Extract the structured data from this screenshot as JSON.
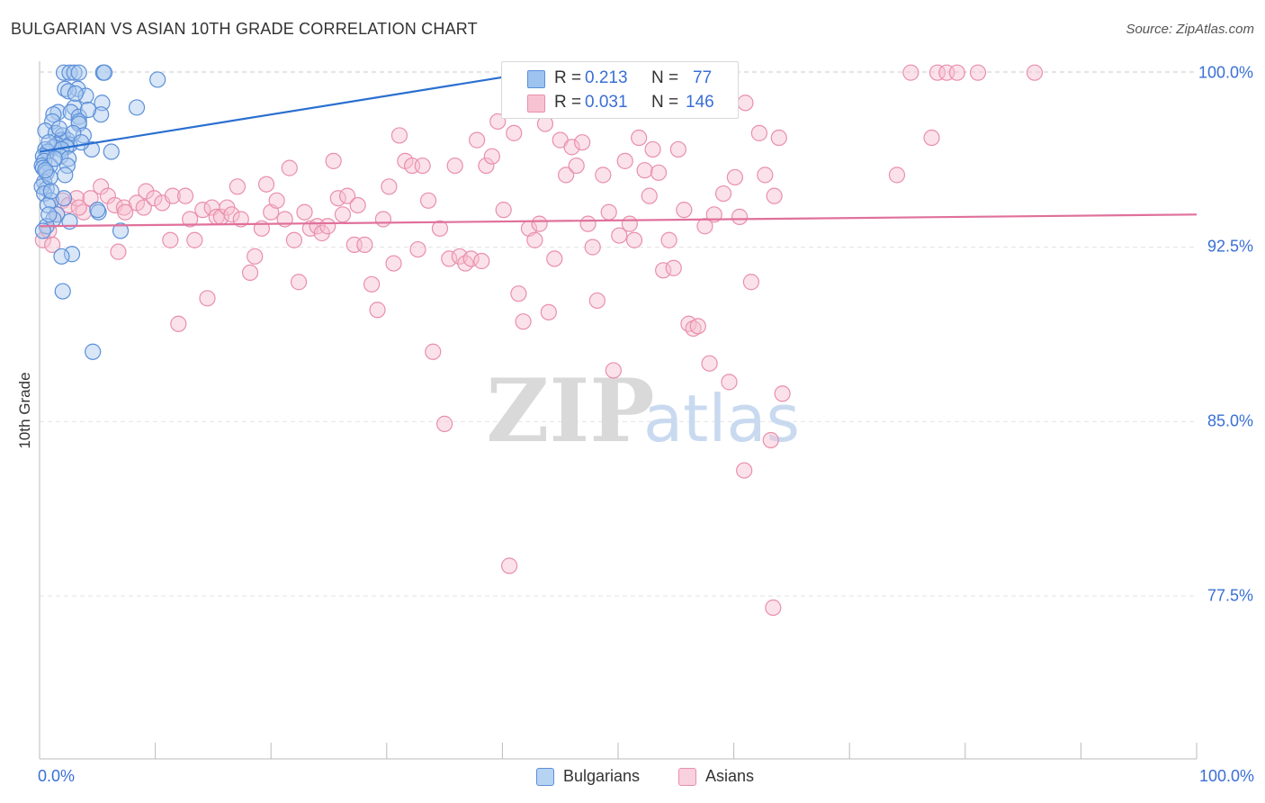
{
  "header": {
    "title": "BULGARIAN VS ASIAN 10TH GRADE CORRELATION CHART",
    "source": "Source: ZipAtlas.com"
  },
  "watermark": {
    "zip": "ZIP",
    "atlas": "atlas"
  },
  "legend": {
    "rows": [
      {
        "r_label": "R =",
        "r_value": "0.213",
        "n_label": "N =",
        "n_value": "77",
        "color": "#9dc3ef",
        "border": "#5b8fd9"
      },
      {
        "r_label": "R =",
        "r_value": "0.031",
        "n_label": "N =",
        "n_value": "146",
        "color": "#f7c3d3",
        "border": "#e98fac"
      }
    ]
  },
  "bottom_legend": [
    {
      "label": "Bulgarians",
      "color": "#b7d3f2",
      "border": "#5b8fd9"
    },
    {
      "label": "Asians",
      "color": "#f9d0dd",
      "border": "#e98fac"
    }
  ],
  "chart_data": {
    "type": "scatter",
    "title": "BULGARIAN VS ASIAN 10TH GRADE CORRELATION CHART",
    "xlabel": "",
    "ylabel": "10th Grade",
    "xlim": [
      0,
      100
    ],
    "ylim": [
      70.5,
      100.8
    ],
    "x_tick_labels": [
      {
        "value": 0,
        "label": "0.0%"
      },
      {
        "value": 100,
        "label": "100.0%"
      }
    ],
    "y_ticks": [
      {
        "value": 100.0,
        "label": "100.0%"
      },
      {
        "value": 92.5,
        "label": "92.5%"
      },
      {
        "value": 85.0,
        "label": "85.0%"
      },
      {
        "value": 77.5,
        "label": "77.5%"
      }
    ],
    "grid": true,
    "legend_position": "top-center",
    "series": [
      {
        "name": "Bulgarians",
        "color": "#5b8fd9",
        "fill": "#a9c8ee",
        "trend": {
          "x": [
            0,
            45
          ],
          "y": [
            96.6,
            100.2
          ],
          "color": "#2a6fd0"
        },
        "points": [
          [
            2.1,
            100.0
          ],
          [
            2.6,
            100.0
          ],
          [
            3.0,
            100.0
          ],
          [
            3.4,
            100.0
          ],
          [
            5.5,
            100.0
          ],
          [
            5.6,
            100.0
          ],
          [
            10.2,
            99.7
          ],
          [
            2.2,
            99.3
          ],
          [
            3.3,
            99.3
          ],
          [
            2.5,
            99.2
          ],
          [
            4.0,
            99.0
          ],
          [
            5.4,
            98.7
          ],
          [
            3.0,
            98.5
          ],
          [
            8.4,
            98.5
          ],
          [
            1.6,
            98.3
          ],
          [
            2.7,
            98.3
          ],
          [
            1.2,
            98.2
          ],
          [
            5.3,
            98.2
          ],
          [
            3.4,
            98.1
          ],
          [
            1.1,
            97.9
          ],
          [
            3.4,
            97.9
          ],
          [
            3.4,
            97.8
          ],
          [
            0.5,
            97.5
          ],
          [
            1.4,
            97.4
          ],
          [
            2.0,
            97.3
          ],
          [
            3.8,
            97.3
          ],
          [
            1.9,
            97.1
          ],
          [
            2.4,
            97.1
          ],
          [
            1.5,
            96.9
          ],
          [
            2.6,
            96.9
          ],
          [
            2.3,
            96.8
          ],
          [
            1.2,
            96.8
          ],
          [
            0.5,
            96.7
          ],
          [
            1.9,
            96.7
          ],
          [
            4.5,
            96.7
          ],
          [
            0.7,
            96.6
          ],
          [
            6.2,
            96.6
          ],
          [
            0.3,
            96.4
          ],
          [
            1.8,
            96.4
          ],
          [
            2.5,
            96.3
          ],
          [
            0.4,
            96.2
          ],
          [
            0.2,
            96.0
          ],
          [
            0.9,
            96.0
          ],
          [
            2.4,
            96.0
          ],
          [
            0.3,
            95.9
          ],
          [
            0.6,
            95.7
          ],
          [
            0.4,
            95.3
          ],
          [
            0.6,
            95.0
          ],
          [
            0.2,
            95.1
          ],
          [
            0.4,
            94.8
          ],
          [
            1.0,
            94.5
          ],
          [
            2.1,
            94.6
          ],
          [
            0.7,
            94.3
          ],
          [
            5.1,
            94.0
          ],
          [
            1.5,
            93.9
          ],
          [
            1.2,
            93.7
          ],
          [
            2.6,
            93.6
          ],
          [
            0.6,
            93.4
          ],
          [
            0.3,
            93.2
          ],
          [
            7.0,
            93.2
          ],
          [
            2.8,
            92.2
          ],
          [
            1.9,
            92.1
          ],
          [
            2.0,
            90.6
          ],
          [
            4.6,
            88.0
          ],
          [
            0.8,
            97.0
          ],
          [
            1.7,
            97.6
          ],
          [
            3.1,
            99.1
          ],
          [
            4.2,
            98.4
          ],
          [
            0.9,
            95.5
          ],
          [
            1.3,
            96.3
          ],
          [
            2.9,
            97.4
          ],
          [
            3.6,
            97.0
          ],
          [
            0.5,
            95.8
          ],
          [
            1.0,
            94.9
          ],
          [
            2.2,
            95.6
          ],
          [
            0.8,
            93.9
          ],
          [
            5.0,
            94.1
          ]
        ]
      },
      {
        "name": "Asians",
        "color": "#e98fac",
        "fill": "#f6bfd0",
        "trend": {
          "x": [
            0,
            100
          ],
          "y": [
            93.4,
            93.9
          ],
          "color": "#e0709a"
        },
        "points": [
          [
            0.3,
            92.8
          ],
          [
            1.5,
            93.9
          ],
          [
            2.0,
            94.5
          ],
          [
            2.5,
            94.3
          ],
          [
            3.2,
            94.6
          ],
          [
            3.8,
            94.0
          ],
          [
            4.4,
            94.6
          ],
          [
            5.3,
            95.1
          ],
          [
            5.9,
            94.7
          ],
          [
            6.5,
            94.3
          ],
          [
            7.3,
            94.2
          ],
          [
            7.4,
            94.0
          ],
          [
            8.4,
            94.4
          ],
          [
            9.0,
            94.2
          ],
          [
            9.2,
            94.9
          ],
          [
            9.9,
            94.6
          ],
          [
            10.6,
            94.4
          ],
          [
            11.3,
            92.8
          ],
          [
            11.5,
            94.7
          ],
          [
            12.0,
            89.2
          ],
          [
            12.6,
            94.7
          ],
          [
            13.0,
            93.7
          ],
          [
            13.4,
            92.8
          ],
          [
            14.1,
            94.1
          ],
          [
            14.5,
            90.3
          ],
          [
            14.9,
            94.2
          ],
          [
            15.3,
            93.8
          ],
          [
            15.7,
            93.8
          ],
          [
            16.2,
            94.2
          ],
          [
            16.6,
            93.9
          ],
          [
            17.1,
            95.1
          ],
          [
            17.4,
            93.7
          ],
          [
            18.2,
            91.4
          ],
          [
            18.6,
            92.1
          ],
          [
            19.2,
            93.3
          ],
          [
            19.6,
            95.2
          ],
          [
            20.0,
            94.0
          ],
          [
            20.5,
            94.5
          ],
          [
            21.2,
            93.7
          ],
          [
            21.6,
            95.9
          ],
          [
            22.0,
            92.8
          ],
          [
            22.4,
            91.0
          ],
          [
            22.9,
            94.0
          ],
          [
            23.4,
            93.3
          ],
          [
            24.0,
            93.4
          ],
          [
            24.4,
            93.1
          ],
          [
            24.9,
            93.4
          ],
          [
            25.4,
            96.2
          ],
          [
            25.8,
            94.6
          ],
          [
            26.2,
            93.9
          ],
          [
            26.6,
            94.7
          ],
          [
            27.2,
            92.6
          ],
          [
            27.5,
            94.3
          ],
          [
            28.1,
            92.6
          ],
          [
            28.7,
            90.9
          ],
          [
            29.2,
            89.8
          ],
          [
            29.7,
            93.7
          ],
          [
            30.2,
            95.1
          ],
          [
            30.6,
            91.8
          ],
          [
            31.1,
            97.3
          ],
          [
            31.6,
            96.2
          ],
          [
            32.2,
            96.0
          ],
          [
            32.7,
            92.4
          ],
          [
            33.1,
            96.0
          ],
          [
            33.6,
            94.5
          ],
          [
            34.0,
            88.0
          ],
          [
            34.6,
            93.3
          ],
          [
            35.0,
            84.9
          ],
          [
            35.4,
            92.0
          ],
          [
            35.9,
            96.0
          ],
          [
            36.3,
            92.1
          ],
          [
            36.8,
            91.8
          ],
          [
            37.3,
            92.0
          ],
          [
            37.8,
            97.1
          ],
          [
            38.2,
            91.9
          ],
          [
            38.6,
            96.0
          ],
          [
            39.1,
            96.4
          ],
          [
            39.6,
            97.9
          ],
          [
            40.1,
            94.1
          ],
          [
            40.6,
            78.8
          ],
          [
            41.0,
            97.4
          ],
          [
            41.4,
            90.5
          ],
          [
            41.8,
            89.3
          ],
          [
            42.3,
            93.3
          ],
          [
            42.8,
            92.8
          ],
          [
            43.2,
            93.5
          ],
          [
            43.7,
            97.8
          ],
          [
            44.0,
            89.7
          ],
          [
            44.5,
            92.0
          ],
          [
            45.0,
            97.1
          ],
          [
            45.5,
            95.6
          ],
          [
            46.0,
            96.8
          ],
          [
            46.4,
            96.0
          ],
          [
            46.9,
            97.0
          ],
          [
            47.4,
            93.5
          ],
          [
            47.8,
            92.5
          ],
          [
            48.2,
            90.2
          ],
          [
            48.7,
            95.6
          ],
          [
            49.2,
            94.0
          ],
          [
            49.6,
            87.2
          ],
          [
            50.1,
            93.0
          ],
          [
            50.6,
            96.2
          ],
          [
            51.0,
            93.5
          ],
          [
            51.4,
            92.8
          ],
          [
            51.8,
            97.2
          ],
          [
            52.3,
            95.8
          ],
          [
            52.7,
            94.7
          ],
          [
            53.0,
            96.7
          ],
          [
            53.5,
            95.7
          ],
          [
            53.9,
            91.5
          ],
          [
            54.4,
            92.8
          ],
          [
            54.8,
            91.6
          ],
          [
            55.2,
            96.7
          ],
          [
            55.7,
            94.1
          ],
          [
            56.1,
            89.2
          ],
          [
            56.5,
            89.0
          ],
          [
            56.9,
            89.1
          ],
          [
            57.5,
            93.4
          ],
          [
            57.9,
            87.5
          ],
          [
            58.3,
            93.9
          ],
          [
            58.7,
            98.4
          ],
          [
            59.1,
            94.8
          ],
          [
            59.6,
            86.7
          ],
          [
            60.1,
            95.5
          ],
          [
            60.5,
            93.8
          ],
          [
            61.0,
            98.7
          ],
          [
            61.5,
            91.0
          ],
          [
            62.2,
            97.4
          ],
          [
            62.7,
            95.6
          ],
          [
            63.2,
            84.2
          ],
          [
            63.5,
            94.7
          ],
          [
            63.9,
            97.2
          ],
          [
            64.2,
            86.2
          ],
          [
            60.9,
            82.9
          ],
          [
            63.4,
            77.0
          ],
          [
            74.1,
            95.6
          ],
          [
            75.3,
            100.0
          ],
          [
            77.6,
            100.0
          ],
          [
            78.4,
            100.0
          ],
          [
            79.3,
            100.0
          ],
          [
            81.1,
            100.0
          ],
          [
            86.0,
            100.0
          ],
          [
            77.1,
            97.2
          ],
          [
            0.8,
            93.2
          ],
          [
            1.1,
            92.6
          ],
          [
            3.4,
            94.2
          ],
          [
            6.8,
            92.3
          ]
        ]
      }
    ]
  }
}
